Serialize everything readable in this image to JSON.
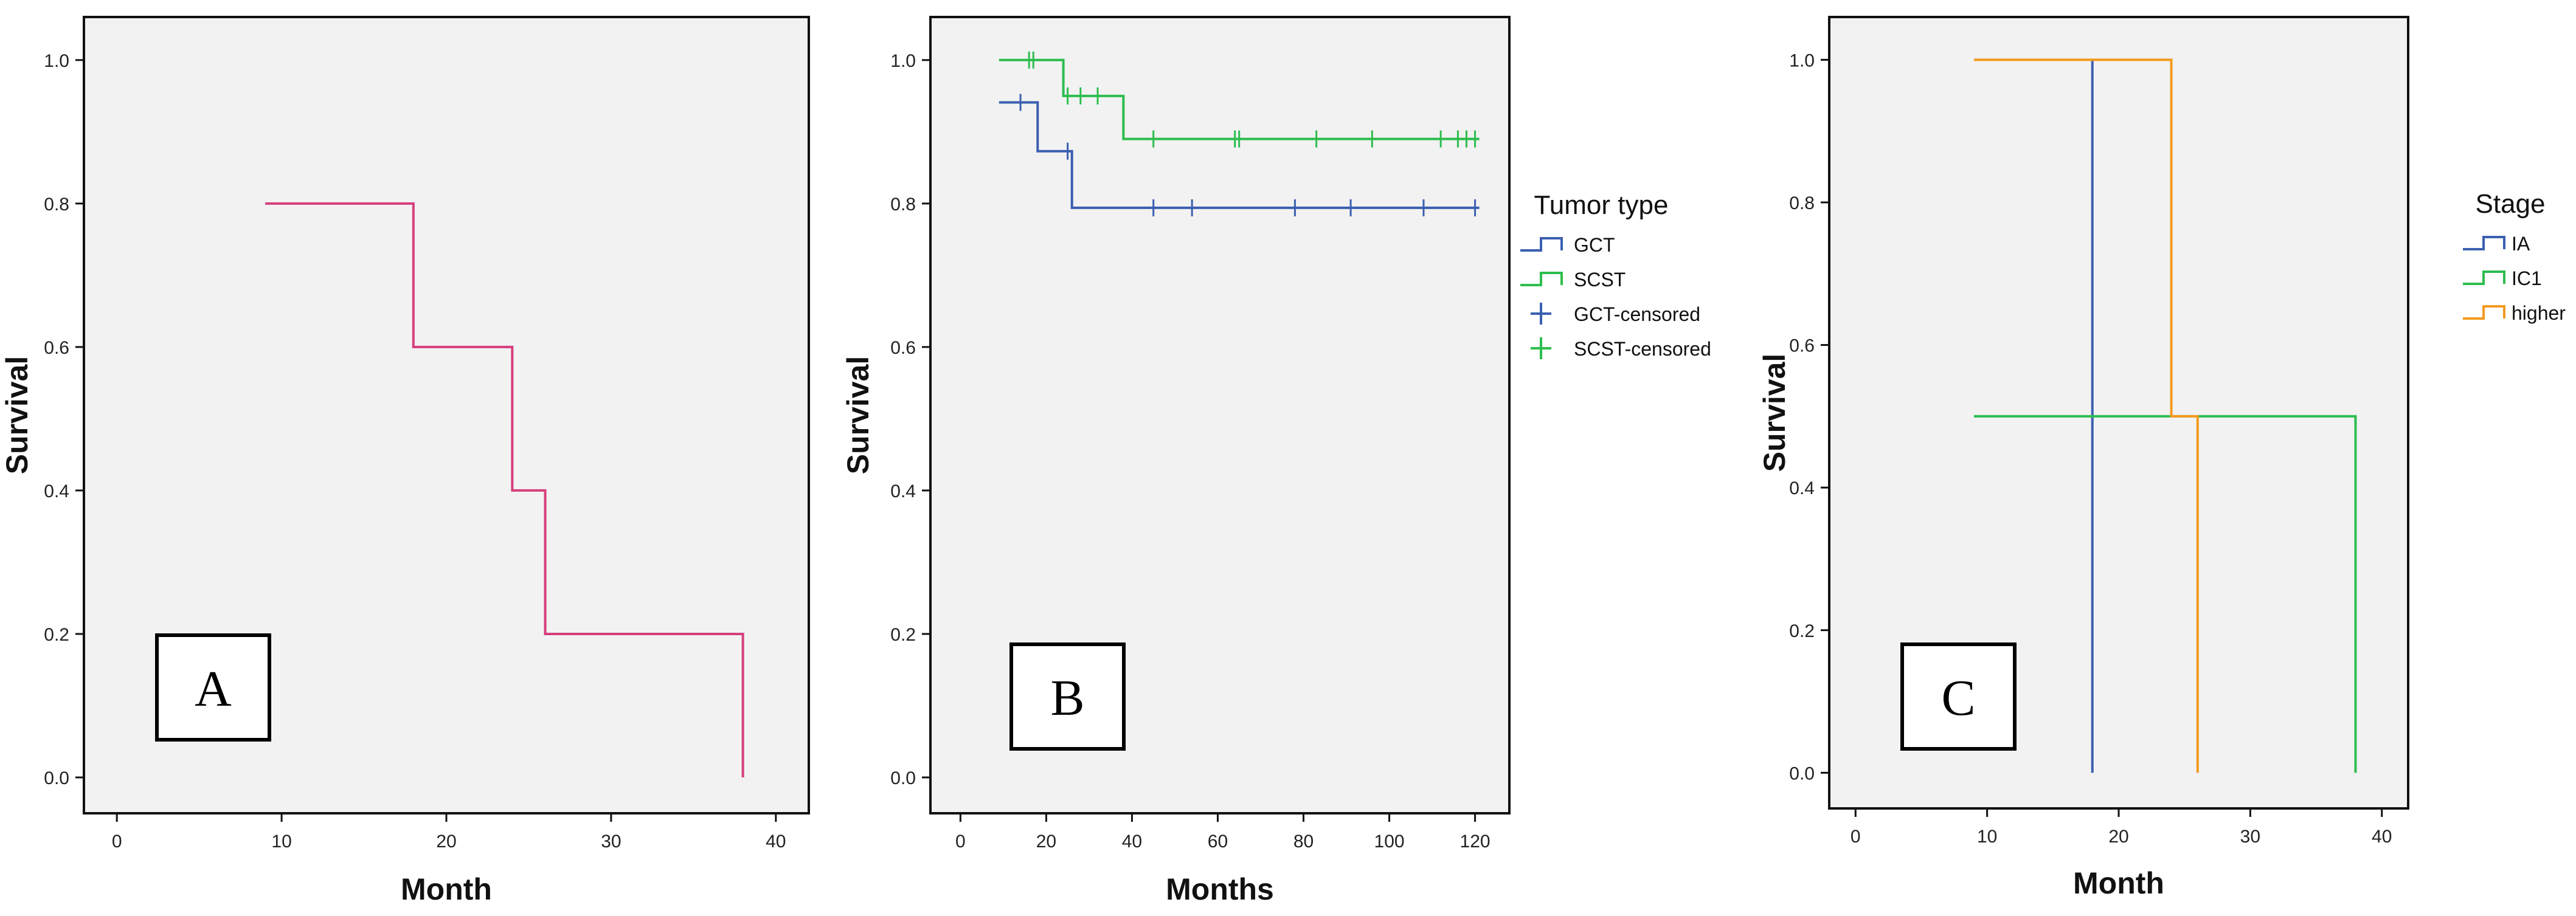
{
  "chart_data": [
    {
      "type": "line",
      "subtype": "kaplan-meier",
      "panel_label": "A",
      "xlabel": "Month",
      "ylabel": "Survival",
      "xlim": [
        -2,
        42
      ],
      "ylim": [
        -0.05,
        1.06
      ],
      "xticks": [
        0,
        10,
        20,
        30,
        40
      ],
      "xtick_labels": [
        "0",
        "10",
        "20",
        "30",
        "40"
      ],
      "yticks": [
        0,
        0.2,
        0.4,
        0.6,
        0.8,
        1.0
      ],
      "ytick_labels": [
        "0.0",
        "0.2",
        "0.4",
        "0.6",
        "0.8",
        "1.0"
      ],
      "series": [
        {
          "name": "survival",
          "color": "#d63f7e",
          "steps": [
            [
              9,
              0.8
            ],
            [
              18,
              0.6
            ],
            [
              24,
              0.4
            ],
            [
              26,
              0.2
            ],
            [
              38,
              0.0
            ]
          ],
          "end": 38,
          "drop_end": false,
          "censored": []
        }
      ],
      "legend": null
    },
    {
      "type": "line",
      "subtype": "kaplan-meier",
      "panel_label": "B",
      "xlabel": "Months",
      "ylabel": "Survival",
      "xlim": [
        -7,
        128
      ],
      "ylim": [
        -0.05,
        1.06
      ],
      "xticks": [
        0,
        20,
        40,
        60,
        80,
        100,
        120
      ],
      "xtick_labels": [
        "0",
        "20",
        "40",
        "60",
        "80",
        "100",
        "120"
      ],
      "yticks": [
        0,
        0.2,
        0.4,
        0.6,
        0.8,
        1.0
      ],
      "ytick_labels": [
        "0.0",
        "0.2",
        "0.4",
        "0.6",
        "0.8",
        "1.0"
      ],
      "series": [
        {
          "name": "GCT",
          "color": "#3a5fb0",
          "steps": [
            [
              9,
              0.941
            ],
            [
              18,
              0.873
            ],
            [
              26,
              0.794
            ]
          ],
          "end": 121,
          "drop_end": false,
          "censored": [
            [
              14,
              0.941
            ],
            [
              25,
              0.873
            ],
            [
              45,
              0.794
            ],
            [
              54,
              0.794
            ],
            [
              78,
              0.794
            ],
            [
              91,
              0.794
            ],
            [
              108,
              0.794
            ],
            [
              120,
              0.794
            ]
          ]
        },
        {
          "name": "SCST",
          "color": "#2dbd4e",
          "steps": [
            [
              9,
              1.0
            ],
            [
              24,
              0.95
            ],
            [
              38,
              0.89
            ]
          ],
          "end": 121,
          "drop_end": false,
          "censored": [
            [
              16,
              1.0
            ],
            [
              17,
              1.0
            ],
            [
              25,
              0.95
            ],
            [
              28,
              0.95
            ],
            [
              32,
              0.95
            ],
            [
              45,
              0.89
            ],
            [
              64,
              0.89
            ],
            [
              65,
              0.89
            ],
            [
              83,
              0.89
            ],
            [
              96,
              0.89
            ],
            [
              112,
              0.89
            ],
            [
              116,
              0.89
            ],
            [
              118,
              0.89
            ],
            [
              120,
              0.89
            ]
          ]
        }
      ],
      "legend": {
        "title": "Tumor type",
        "entries": [
          {
            "label": "GCT",
            "kind": "line",
            "color": "#3a5fb0"
          },
          {
            "label": "SCST",
            "kind": "line",
            "color": "#2dbd4e"
          },
          {
            "label": "GCT-censored",
            "kind": "cross",
            "color": "#3a5fb0"
          },
          {
            "label": "SCST-censored",
            "kind": "cross",
            "color": "#2dbd4e"
          }
        ]
      }
    },
    {
      "type": "line",
      "subtype": "kaplan-meier",
      "panel_label": "C",
      "xlabel": "Month",
      "ylabel": "Survival",
      "xlim": [
        -2,
        42
      ],
      "ylim": [
        -0.05,
        1.06
      ],
      "xticks": [
        0,
        10,
        20,
        30,
        40
      ],
      "xtick_labels": [
        "0",
        "10",
        "20",
        "30",
        "40"
      ],
      "yticks": [
        0,
        0.2,
        0.4,
        0.6,
        0.8,
        1.0
      ],
      "ytick_labels": [
        "0.0",
        "0.2",
        "0.4",
        "0.6",
        "0.8",
        "1.0"
      ],
      "series": [
        {
          "name": "IA",
          "color": "#3a5fb0",
          "steps": [
            [
              18,
              1.0
            ]
          ],
          "end": 18,
          "drop_end": true,
          "censored": []
        },
        {
          "name": "IC1",
          "color": "#2dbd4e",
          "steps": [
            [
              9,
              0.5
            ]
          ],
          "end": 38,
          "drop_end": true,
          "censored": []
        },
        {
          "name": "higher",
          "color": "#f39a1e",
          "steps": [
            [
              9,
              1.0
            ],
            [
              24,
              0.5
            ]
          ],
          "end": 26,
          "drop_end": true,
          "censored": []
        }
      ],
      "legend": {
        "title": "Stage",
        "entries": [
          {
            "label": "IA",
            "kind": "line",
            "color": "#3a5fb0"
          },
          {
            "label": "IC1",
            "kind": "line",
            "color": "#2dbd4e"
          },
          {
            "label": "higher",
            "kind": "line",
            "color": "#f39a1e"
          }
        ]
      }
    }
  ]
}
